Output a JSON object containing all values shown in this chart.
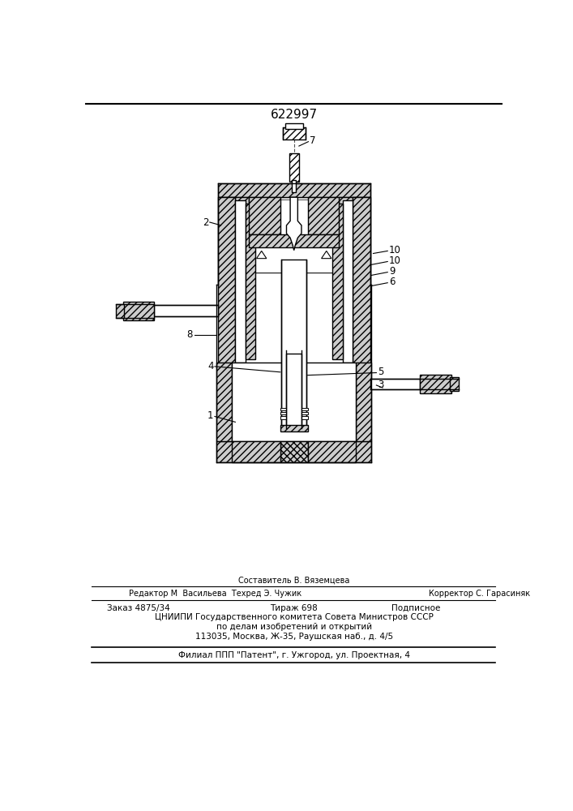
{
  "patent_number": "622997",
  "bg_color": "#ffffff",
  "line_color": "#000000",
  "footer": {
    "line1_center": "Составитель В. Вяземцева",
    "line1_left": "Редактор М  Васильева  Техред Э. Чужик",
    "line1_right": "Корректор С. Гарасиняк",
    "line2_left": "Заказ 4875/34",
    "line2_center": "Тираж 698",
    "line2_right": "Подписное",
    "line3": "ЦНИИПИ Государственного комитета Совета Министров СССР",
    "line4": "по делам изобретений и открытий",
    "line5": "113035, Москва, Ж-35, Раушская наб., д. 4/5",
    "line6": "Филиал ППП \"Патент\", г. Ужгород, ул. Проектная, 4"
  }
}
